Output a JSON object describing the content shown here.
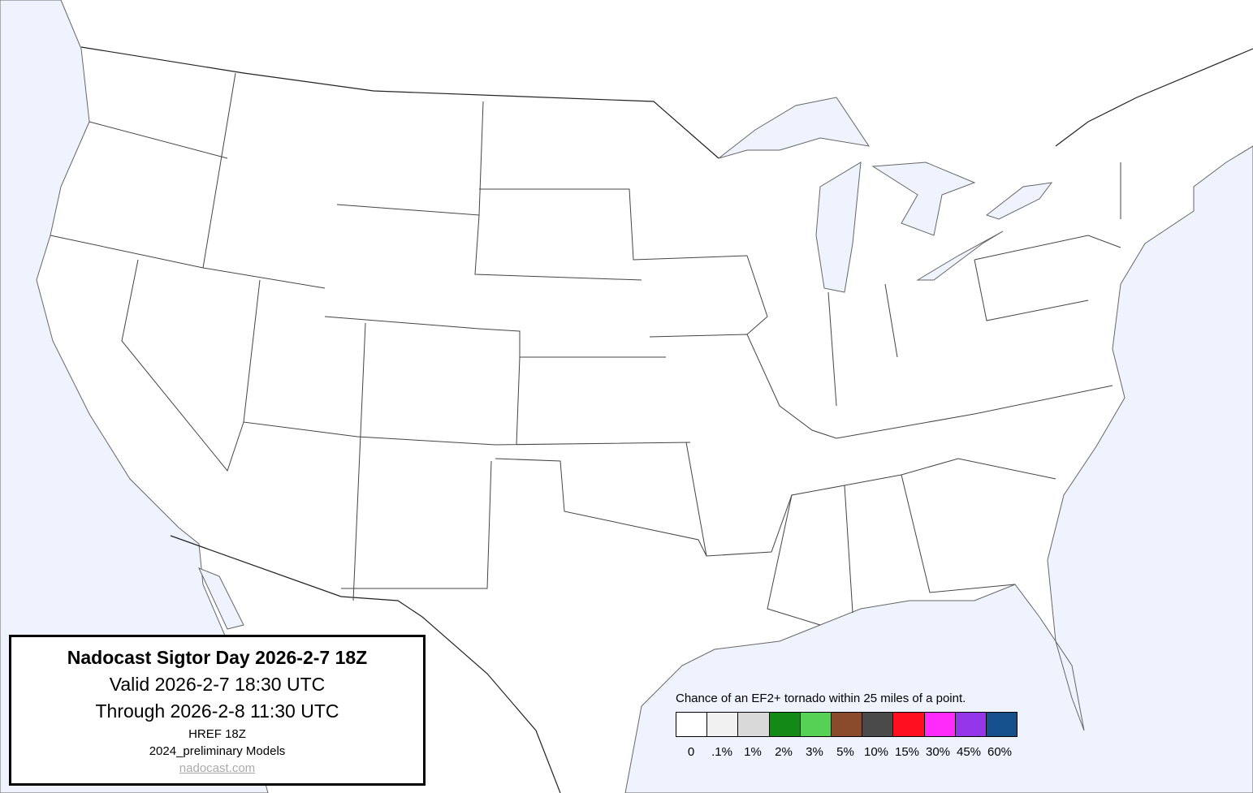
{
  "info": {
    "title": "Nadocast Sigtor Day 2026-2-7 18Z",
    "valid": "Valid 2026-2-7 18:30 UTC",
    "through": "Through 2026-2-8 11:30 UTC",
    "model": "HREF 18Z",
    "models_version": "2024_preliminary Models",
    "site": "nadocast.com"
  },
  "legend": {
    "title": "Chance of an EF2+ tornado within 25 miles of a point.",
    "bins": [
      {
        "label": "0",
        "color": "#ffffff"
      },
      {
        "label": ".1%",
        "color": "#f1f1f1"
      },
      {
        "label": "1%",
        "color": "#d9d9d9"
      },
      {
        "label": "2%",
        "color": "#138a16"
      },
      {
        "label": "3%",
        "color": "#56d155"
      },
      {
        "label": "5%",
        "color": "#8a4a2c"
      },
      {
        "label": "10%",
        "color": "#4a4a4a"
      },
      {
        "label": "15%",
        "color": "#ff0f1f"
      },
      {
        "label": "30%",
        "color": "#ff2bfa"
      },
      {
        "label": "45%",
        "color": "#9436ea"
      },
      {
        "label": "60%",
        "color": "#16508c"
      }
    ]
  },
  "colors": {
    "water": "#eef3fe",
    "land": "#ffffff"
  }
}
